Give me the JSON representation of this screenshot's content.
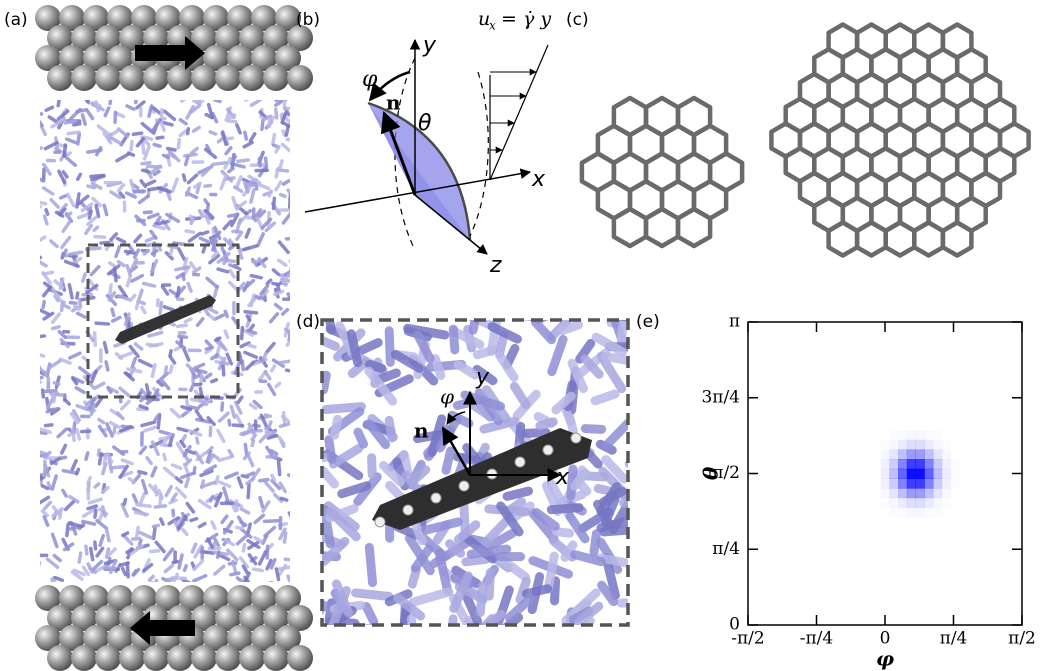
{
  "figure": {
    "a": {
      "label": "(a)"
    },
    "b": {
      "label": "(b)",
      "y": "y",
      "x": "x",
      "z": "z",
      "phi": "φ",
      "theta": "θ",
      "n": "n",
      "eq_u": "u",
      "eq_sub": "x",
      "eq_rest": "= γ̇ y"
    },
    "c": {
      "label": "(c)"
    },
    "d": {
      "label": "(d)",
      "y": "y",
      "x": "x",
      "phi": "φ",
      "n": "n"
    },
    "e": {
      "label": "(e)"
    }
  },
  "chart_data": {
    "type": "heatmap",
    "xlabel": "φ",
    "ylabel": "θ",
    "color": "#0000ff",
    "xlim": [
      -1.5708,
      1.5708
    ],
    "xticks": [
      {
        "value": -1.5708,
        "label": "-π/2"
      },
      {
        "value": -0.7854,
        "label": "-π/4"
      },
      0,
      {
        "value": 0.7854,
        "label": "π/4"
      },
      {
        "value": 1.5708,
        "label": "π/2"
      }
    ],
    "ylim": [
      0,
      3.1416
    ],
    "yticks": [
      0,
      {
        "value": 0.7854,
        "label": "π/4"
      },
      {
        "value": 1.5708,
        "label": "π/2"
      },
      {
        "value": 2.3562,
        "label": "3π/4"
      },
      {
        "value": 3.1416,
        "label": "π"
      }
    ],
    "x": [
      0.0,
      0.1,
      0.2,
      0.3,
      0.4,
      0.5,
      0.6,
      0.7,
      0.8
    ],
    "y": [
      1.17,
      1.27,
      1.37,
      1.47,
      1.57,
      1.67,
      1.77,
      1.87,
      1.97
    ],
    "values": [
      [
        0,
        0.01,
        0.02,
        0.03,
        0.03,
        0.02,
        0.01,
        0,
        0
      ],
      [
        0.01,
        0.03,
        0.08,
        0.13,
        0.13,
        0.08,
        0.03,
        0.01,
        0
      ],
      [
        0.03,
        0.1,
        0.25,
        0.39,
        0.39,
        0.25,
        0.1,
        0.03,
        0
      ],
      [
        0.06,
        0.2,
        0.49,
        0.76,
        0.76,
        0.49,
        0.2,
        0.06,
        0.01
      ],
      [
        0.07,
        0.25,
        0.61,
        0.95,
        0.95,
        0.61,
        0.25,
        0.07,
        0.01
      ],
      [
        0.06,
        0.2,
        0.49,
        0.76,
        0.76,
        0.49,
        0.2,
        0.06,
        0.01
      ],
      [
        0.03,
        0.1,
        0.25,
        0.39,
        0.39,
        0.25,
        0.1,
        0.03,
        0
      ],
      [
        0.01,
        0.03,
        0.08,
        0.13,
        0.13,
        0.08,
        0.03,
        0.01,
        0
      ],
      [
        0,
        0.01,
        0.02,
        0.03,
        0.03,
        0.02,
        0.01,
        0,
        0
      ]
    ]
  }
}
